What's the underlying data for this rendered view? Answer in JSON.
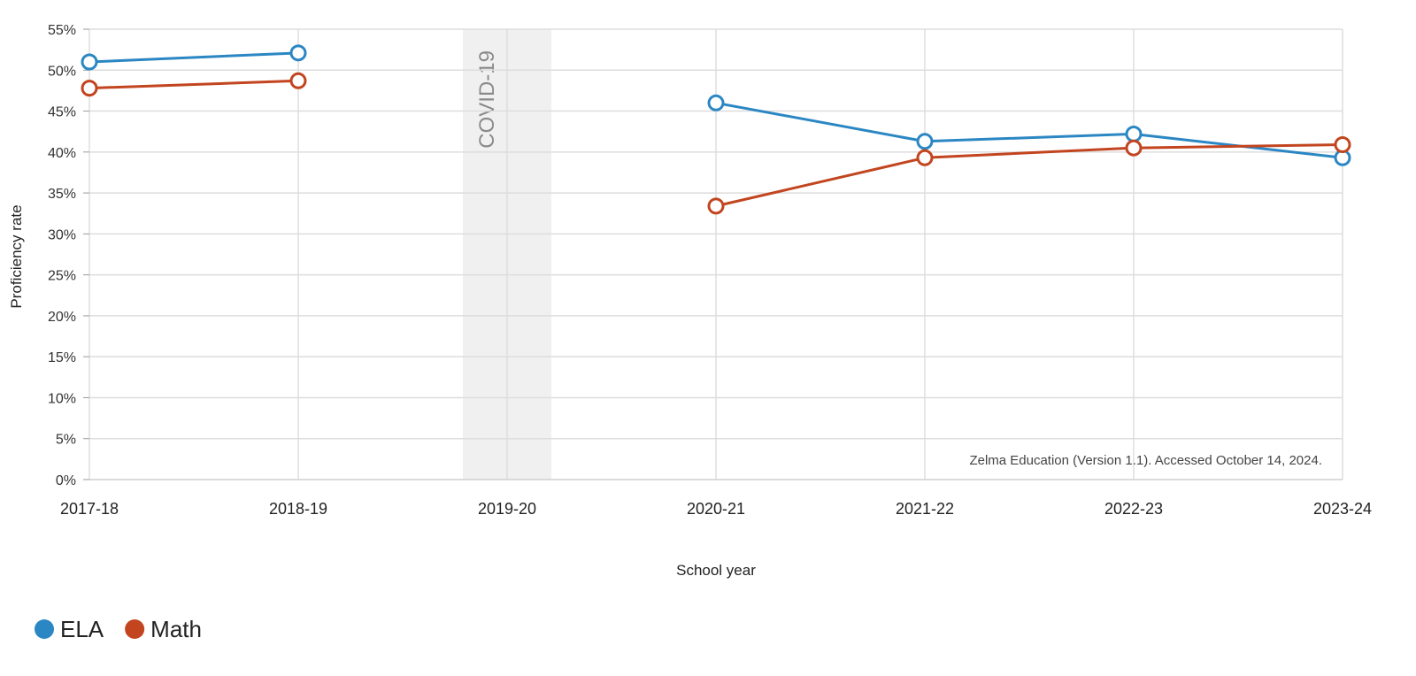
{
  "chart_data": {
    "type": "line",
    "categories": [
      "2017-18",
      "2018-19",
      "2019-20",
      "2020-21",
      "2021-22",
      "2022-23",
      "2023-24"
    ],
    "series": [
      {
        "name": "ELA",
        "color": "#2b87c3",
        "values": [
          51.0,
          52.1,
          null,
          46.0,
          41.3,
          42.2,
          39.3
        ]
      },
      {
        "name": "Math",
        "color": "#c2451f",
        "values": [
          47.8,
          48.7,
          null,
          33.4,
          39.3,
          40.5,
          40.9
        ]
      }
    ],
    "ylim": [
      0,
      55
    ],
    "yticks": [
      0,
      5,
      10,
      15,
      20,
      25,
      30,
      35,
      40,
      45,
      50,
      55
    ],
    "ytick_labels": [
      "0%",
      "5%",
      "10%",
      "15%",
      "20%",
      "25%",
      "30%",
      "35%",
      "40%",
      "45%",
      "50%",
      "55%"
    ],
    "xlabel": "School year",
    "ylabel": "Proficiency rate",
    "grid": true,
    "legend_position": "bottom-left",
    "annotation": {
      "category": "2019-20",
      "label": "COVID-19",
      "band_color": "#f0f0f0"
    },
    "source_note": "Zelma Education (Version 1.1). Accessed October 14, 2024."
  }
}
